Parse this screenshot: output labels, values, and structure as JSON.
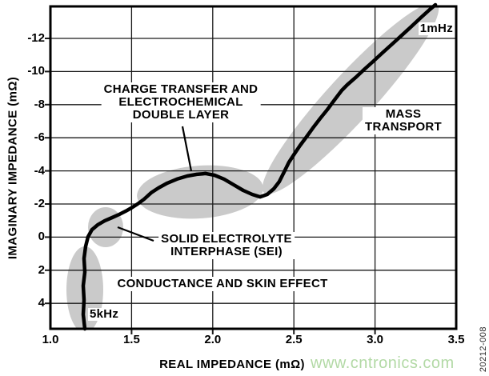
{
  "chart_data": {
    "type": "line",
    "title": "",
    "description": "Nyquist plot of battery electrochemical impedance",
    "x_axis": {
      "label": "REAL IMPEDANCE (mΩ)",
      "tick_labels": [
        "1.0",
        "1.5",
        "2.0",
        "2.5",
        "3.0",
        "3.5"
      ],
      "tick_values": [
        1.0,
        1.5,
        2.0,
        2.5,
        3.0,
        3.5
      ],
      "range": [
        1.0,
        3.5
      ],
      "grid": true
    },
    "y_axis": {
      "label": "IMAGINARY IMPEDANCE (mΩ)",
      "tick_labels": [
        "-12",
        "-10",
        "-8",
        "-6",
        "-4",
        "-2",
        "0",
        "2",
        "4"
      ],
      "tick_values": [
        -12,
        -10,
        -8,
        -6,
        -4,
        -2,
        0,
        2,
        4
      ],
      "range": [
        -14,
        5.6
      ],
      "inverted_display": true,
      "grid": true
    },
    "series": [
      {
        "name": "impedance-curve",
        "color": "#000000",
        "points": [
          [
            1.212,
            5.54
          ],
          [
            1.202,
            4.67
          ],
          [
            1.207,
            3.8
          ],
          [
            1.202,
            2.93
          ],
          [
            1.212,
            2.11
          ],
          [
            1.207,
            1.29
          ],
          [
            1.217,
            0.56
          ],
          [
            1.232,
            -0.02
          ],
          [
            1.256,
            -0.45
          ],
          [
            1.291,
            -0.74
          ],
          [
            1.335,
            -0.99
          ],
          [
            1.38,
            -1.18
          ],
          [
            1.424,
            -1.37
          ],
          [
            1.464,
            -1.57
          ],
          [
            1.498,
            -1.76
          ],
          [
            1.537,
            -2.0
          ],
          [
            1.577,
            -2.29
          ],
          [
            1.621,
            -2.68
          ],
          [
            1.666,
            -2.97
          ],
          [
            1.72,
            -3.26
          ],
          [
            1.779,
            -3.5
          ],
          [
            1.843,
            -3.69
          ],
          [
            1.902,
            -3.79
          ],
          [
            1.957,
            -3.84
          ],
          [
            2.011,
            -3.74
          ],
          [
            2.07,
            -3.5
          ],
          [
            2.129,
            -3.16
          ],
          [
            2.188,
            -2.82
          ],
          [
            2.243,
            -2.58
          ],
          [
            2.292,
            -2.43
          ],
          [
            2.336,
            -2.58
          ],
          [
            2.376,
            -2.92
          ],
          [
            2.41,
            -3.35
          ],
          [
            2.44,
            -3.93
          ],
          [
            2.469,
            -4.51
          ],
          [
            2.504,
            -5.04
          ],
          [
            2.538,
            -5.53
          ],
          [
            2.578,
            -6.06
          ],
          [
            2.617,
            -6.59
          ],
          [
            2.662,
            -7.17
          ],
          [
            2.706,
            -7.7
          ],
          [
            2.75,
            -8.28
          ],
          [
            2.795,
            -8.86
          ],
          [
            2.829,
            -9.2
          ],
          [
            2.879,
            -9.63
          ],
          [
            2.933,
            -10.12
          ],
          [
            2.987,
            -10.6
          ],
          [
            3.046,
            -11.13
          ],
          [
            3.106,
            -11.66
          ],
          [
            3.165,
            -12.19
          ],
          [
            3.224,
            -12.72
          ],
          [
            3.283,
            -13.26
          ],
          [
            3.337,
            -13.74
          ],
          [
            3.372,
            -14.03
          ]
        ]
      }
    ],
    "point_labels": [
      {
        "text": "5kHz",
        "location": "curve start, bottom left"
      },
      {
        "text": "1mHz",
        "location": "curve end, top right"
      }
    ],
    "legend": null
  },
  "annotations": {
    "charge_transfer": {
      "lines": [
        "CHARGE TRANSFER AND",
        "ELECTROCHEMICAL",
        "DOUBLE LAYER"
      ]
    },
    "sei": {
      "lines": [
        "SOLID ELECTROLYTE",
        "INTERPHASE (SEI)"
      ]
    },
    "conductance": {
      "label": "CONDUCTANCE AND SKIN EFFECT"
    },
    "mass_transport": {
      "lines": [
        "MASS",
        "TRANSPORT"
      ]
    }
  },
  "watermark": {
    "text": "www.cntronics.com",
    "color": "#b2d9a5"
  },
  "doc_number": "20212-008",
  "colors": {
    "highlight_region_gray": "#cacaca",
    "curve": "#000000",
    "grid": "#1a1a1a",
    "background": "#ffffff"
  }
}
